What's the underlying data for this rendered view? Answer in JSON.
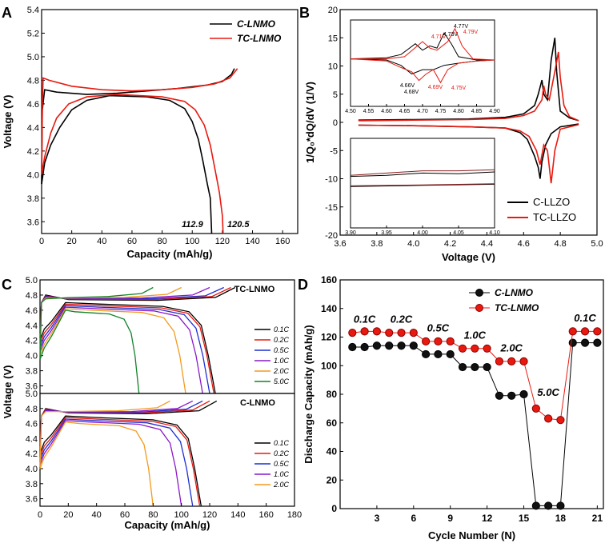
{
  "colors": {
    "black": "#000000",
    "red": "#e8190f",
    "blue": "#1f2fd0",
    "purple": "#8a18c8",
    "orange": "#f39a1c",
    "green": "#11822a",
    "darkred": "#8b1a1a"
  },
  "chart_data": [
    {
      "panel": "A",
      "type": "line",
      "xlabel": "Capacity (mAh/g)",
      "ylabel": "Voltage (V)",
      "xlim": [
        0,
        170
      ],
      "ylim": [
        3.5,
        5.4
      ],
      "xticks": [
        "0",
        "20",
        "40",
        "60",
        "80",
        "100",
        "120",
        "140",
        "160"
      ],
      "yticks": [
        "3.6",
        "3.8",
        "4.0",
        "4.2",
        "4.4",
        "4.6",
        "4.8",
        "5.0",
        "5.2",
        "5.4"
      ],
      "legend": [
        "C-LNMO",
        "TC-LNMO"
      ],
      "annotations": [
        "112.9",
        "120.5"
      ],
      "series": [
        {
          "name": "C-LNMO charge",
          "color": "black",
          "points": [
            [
              0,
              3.92
            ],
            [
              0.5,
              4.55
            ],
            [
              2,
              4.72
            ],
            [
              10,
              4.7
            ],
            [
              30,
              4.68
            ],
            [
              50,
              4.69
            ],
            [
              70,
              4.71
            ],
            [
              90,
              4.73
            ],
            [
              110,
              4.76
            ],
            [
              120,
              4.79
            ],
            [
              126,
              4.85
            ],
            [
              128,
              4.9
            ]
          ]
        },
        {
          "name": "C-LNMO discharge",
          "color": "black",
          "points": [
            [
              0,
              3.92
            ],
            [
              2,
              4.1
            ],
            [
              6,
              4.25
            ],
            [
              12,
              4.4
            ],
            [
              20,
              4.55
            ],
            [
              30,
              4.63
            ],
            [
              45,
              4.67
            ],
            [
              70,
              4.66
            ],
            [
              85,
              4.63
            ],
            [
              95,
              4.56
            ],
            [
              100,
              4.45
            ],
            [
              104,
              4.3
            ],
            [
              107,
              4.12
            ],
            [
              110,
              3.92
            ],
            [
              112,
              3.8
            ],
            [
              112.9,
              3.5
            ]
          ]
        },
        {
          "name": "TC-LNMO charge",
          "color": "red",
          "points": [
            [
              0,
              4.0
            ],
            [
              0.5,
              4.6
            ],
            [
              1,
              4.82
            ],
            [
              5,
              4.8
            ],
            [
              20,
              4.75
            ],
            [
              40,
              4.72
            ],
            [
              60,
              4.71
            ],
            [
              80,
              4.72
            ],
            [
              100,
              4.74
            ],
            [
              115,
              4.77
            ],
            [
              125,
              4.82
            ],
            [
              130,
              4.9
            ]
          ]
        },
        {
          "name": "TC-LNMO discharge",
          "color": "red",
          "points": [
            [
              0,
              4.0
            ],
            [
              2,
              4.15
            ],
            [
              6,
              4.35
            ],
            [
              10,
              4.48
            ],
            [
              18,
              4.6
            ],
            [
              30,
              4.66
            ],
            [
              50,
              4.68
            ],
            [
              80,
              4.66
            ],
            [
              95,
              4.62
            ],
            [
              102,
              4.55
            ],
            [
              108,
              4.42
            ],
            [
              112,
              4.25
            ],
            [
              115,
              4.05
            ],
            [
              118,
              3.85
            ],
            [
              120,
              3.65
            ],
            [
              120.5,
              3.5
            ]
          ]
        }
      ]
    },
    {
      "panel": "B",
      "type": "line",
      "xlabel": "Voltage (V)",
      "ylabel": "1/Q₀*dQ/dV (1/V)",
      "xlim": [
        3.6,
        5.0
      ],
      "ylim": [
        -20,
        20
      ],
      "xticks": [
        "3.6",
        "3.8",
        "4.0",
        "4.2",
        "4.4",
        "4.6",
        "4.8",
        "5.0"
      ],
      "yticks": [
        "-20",
        "-15",
        "-10",
        "-5",
        "0",
        "5",
        "10",
        "15",
        "20"
      ],
      "legend": [
        "C-LLZO",
        "TC-LLZO"
      ],
      "series": [
        {
          "name": "C-LLZO charge",
          "color": "black",
          "points": [
            [
              3.7,
              0.4
            ],
            [
              4.0,
              0.5
            ],
            [
              4.3,
              0.6
            ],
            [
              4.5,
              0.9
            ],
            [
              4.6,
              1.5
            ],
            [
              4.66,
              3
            ],
            [
              4.68,
              5
            ],
            [
              4.7,
              7.5
            ],
            [
              4.71,
              5
            ],
            [
              4.73,
              4
            ],
            [
              4.75,
              11
            ],
            [
              4.77,
              15
            ],
            [
              4.78,
              9
            ],
            [
              4.8,
              2
            ],
            [
              4.85,
              0.8
            ],
            [
              4.9,
              0.3
            ]
          ]
        },
        {
          "name": "C-LLZO discharge",
          "color": "black",
          "points": [
            [
              4.9,
              -0.3
            ],
            [
              4.8,
              -0.8
            ],
            [
              4.75,
              -2
            ],
            [
              4.72,
              -4
            ],
            [
              4.7,
              -7
            ],
            [
              4.69,
              -10
            ],
            [
              4.68,
              -8
            ],
            [
              4.66,
              -6
            ],
            [
              4.62,
              -3
            ],
            [
              4.58,
              -1.8
            ],
            [
              4.5,
              -1
            ],
            [
              4.3,
              -0.8
            ],
            [
              4.0,
              -0.6
            ],
            [
              3.7,
              -0.5
            ]
          ]
        },
        {
          "name": "TC-LLZO charge",
          "color": "red",
          "points": [
            [
              3.7,
              0.3
            ],
            [
              4.0,
              0.4
            ],
            [
              4.3,
              0.5
            ],
            [
              4.5,
              0.7
            ],
            [
              4.6,
              1.2
            ],
            [
              4.66,
              2
            ],
            [
              4.7,
              4
            ],
            [
              4.71,
              6.5
            ],
            [
              4.72,
              5
            ],
            [
              4.74,
              4
            ],
            [
              4.77,
              9
            ],
            [
              4.79,
              12.5
            ],
            [
              4.8,
              8
            ],
            [
              4.82,
              3
            ],
            [
              4.85,
              1
            ],
            [
              4.9,
              0.3
            ]
          ]
        },
        {
          "name": "TC-LLZO discharge",
          "color": "red",
          "points": [
            [
              4.9,
              -0.4
            ],
            [
              4.8,
              -1.2
            ],
            [
              4.77,
              -5
            ],
            [
              4.75,
              -10.8
            ],
            [
              4.73,
              -5
            ],
            [
              4.71,
              -4
            ],
            [
              4.69,
              -7.5
            ],
            [
              4.67,
              -5
            ],
            [
              4.63,
              -2.5
            ],
            [
              4.58,
              -1.5
            ],
            [
              4.5,
              -1
            ],
            [
              4.3,
              -0.8
            ],
            [
              4.0,
              -0.6
            ],
            [
              3.7,
              -0.5
            ]
          ]
        }
      ],
      "insets": [
        {
          "xlim": [
            4.5,
            4.9
          ],
          "ylim": [
            -20,
            20
          ],
          "xticks": [
            "4.50",
            "4.55",
            "4.60",
            "4.65",
            "4.70",
            "4.75",
            "4.80",
            "4.85",
            "4.90"
          ],
          "peaks": [
            "4.77V",
            "4.73V",
            "4.71V",
            "4.79V",
            "4.66V",
            "4.68V",
            "4.69V",
            "4.75V"
          ]
        },
        {
          "xlim": [
            3.9,
            4.1
          ],
          "ylim": [
            -20,
            20
          ],
          "xticks": [
            "3.90",
            "3.95",
            "4.00",
            "4.05",
            "4.10"
          ]
        }
      ]
    },
    {
      "panel": "C",
      "type": "line",
      "xlabel": "Capacity (mAh/g)",
      "ylabel": "Voltage (V)",
      "xlim": [
        0,
        180
      ],
      "ylim": [
        3.5,
        5.0
      ],
      "xticks": [
        "0",
        "20",
        "40",
        "60",
        "80",
        "100",
        "120",
        "140",
        "160",
        "180"
      ],
      "yticks": [
        "3.6",
        "3.8",
        "4.0",
        "4.2",
        "4.4",
        "4.6",
        "4.8",
        "5.0"
      ],
      "subplots": [
        {
          "title": "TC-LNMO",
          "rates": [
            "0.1C",
            "0.2C",
            "0.5C",
            "1.0C",
            "2.0C",
            "5.0C"
          ],
          "discharge_capacity": [
            124,
            123,
            120,
            115,
            103,
            70
          ]
        },
        {
          "title": "C-LNMO",
          "rates": [
            "0.1C",
            "0.2C",
            "0.5C",
            "1.0C",
            "2.0C"
          ],
          "discharge_capacity": [
            114,
            113,
            108,
            100,
            80
          ]
        }
      ]
    },
    {
      "panel": "D",
      "type": "scatter",
      "xlabel": "Cycle Number (N)",
      "ylabel": "Discharge Capacity (mAh/g)",
      "xlim": [
        0,
        21.5
      ],
      "ylim": [
        0,
        160
      ],
      "xticks": [
        "3",
        "6",
        "9",
        "12",
        "15",
        "18",
        "21"
      ],
      "yticks": [
        "0",
        "20",
        "40",
        "60",
        "80",
        "100",
        "120",
        "140",
        "160"
      ],
      "legend": [
        "C-LNMO",
        "TC-LNMO"
      ],
      "rate_labels": [
        "0.1C",
        "0.2C",
        "0.5C",
        "1.0C",
        "2.0C",
        "5.0C",
        "0.1C"
      ],
      "series": [
        {
          "name": "C-LNMO",
          "x": [
            1,
            2,
            3,
            4,
            5,
            6,
            7,
            8,
            9,
            10,
            11,
            12,
            13,
            14,
            15,
            16,
            17,
            18,
            19,
            20,
            21
          ],
          "values": [
            113,
            113,
            114,
            114,
            114,
            114,
            108,
            108,
            108,
            99,
            99,
            99,
            79,
            79,
            80,
            2,
            2,
            2,
            116,
            116,
            116
          ]
        },
        {
          "name": "TC-LNMO",
          "x": [
            1,
            2,
            3,
            4,
            5,
            6,
            7,
            8,
            9,
            10,
            11,
            12,
            13,
            14,
            15,
            16,
            17,
            18,
            19,
            20,
            21
          ],
          "values": [
            123,
            124,
            124,
            123,
            123,
            123,
            117,
            117,
            117,
            112,
            112,
            112,
            103,
            103,
            103,
            70,
            63,
            62,
            124,
            124,
            124
          ]
        }
      ]
    }
  ]
}
